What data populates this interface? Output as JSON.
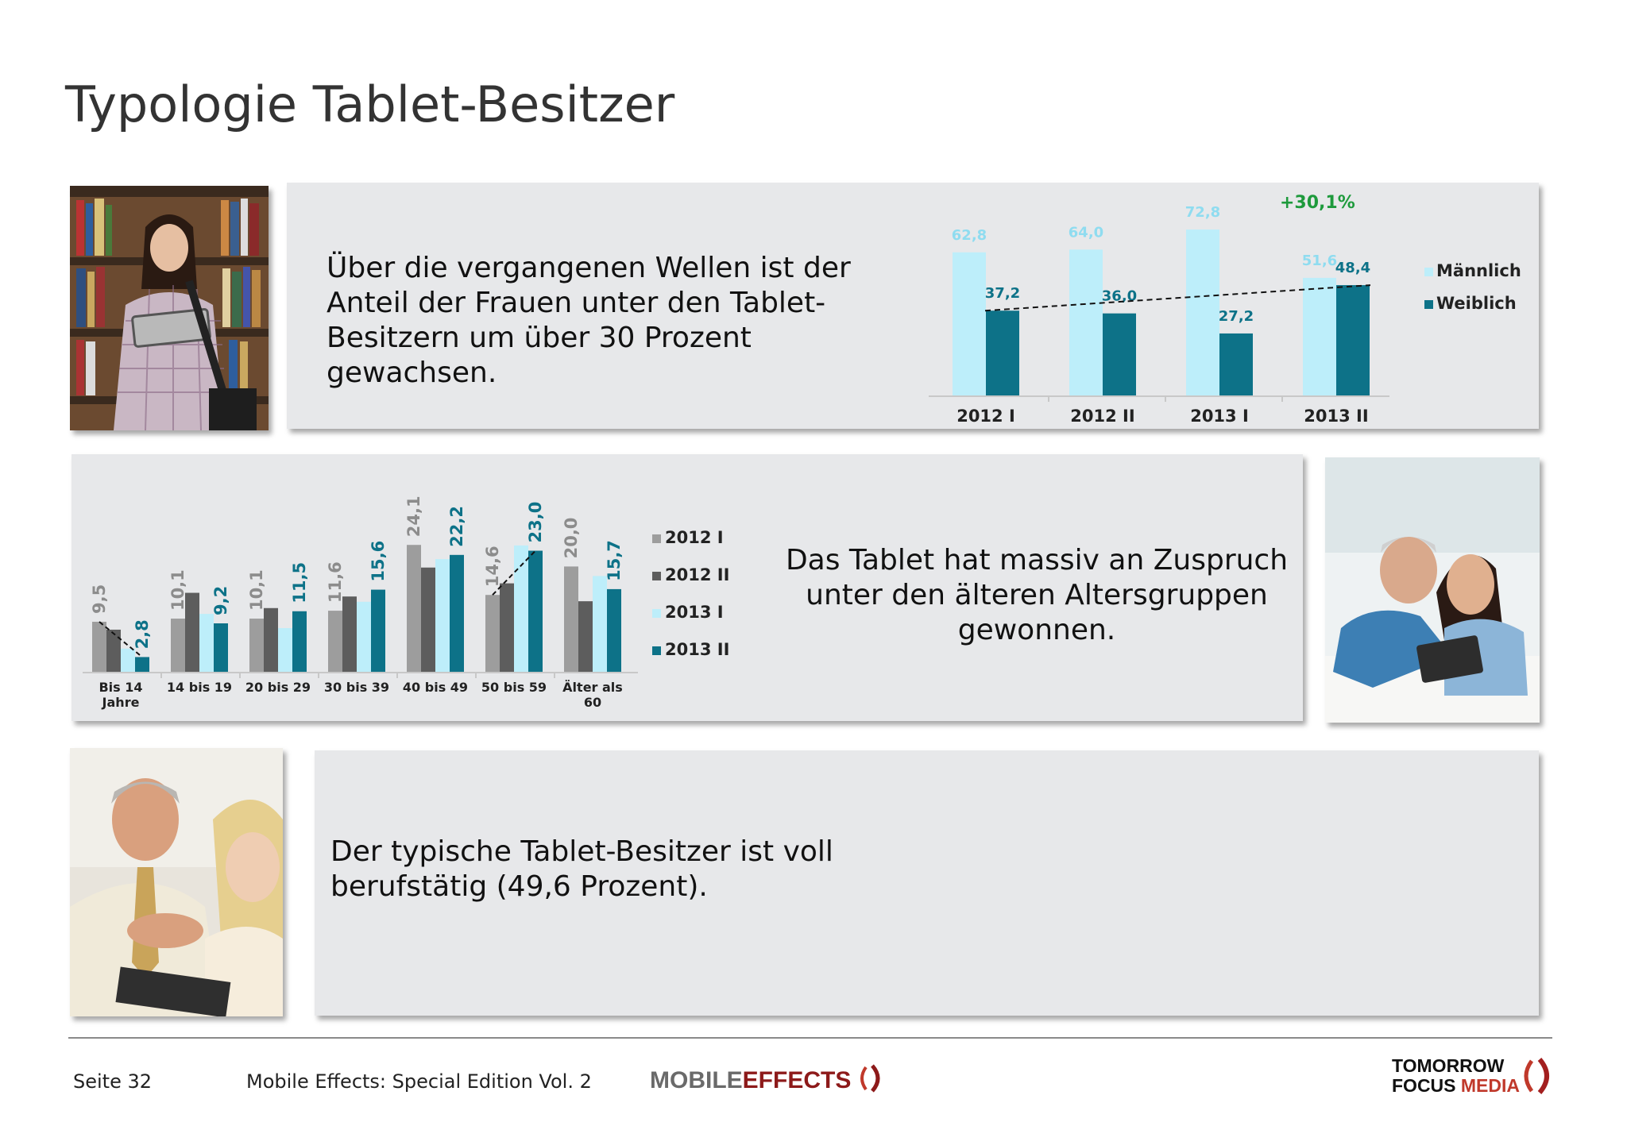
{
  "title": "Typologie Tablet-Besitzer",
  "panels": {
    "top_text": "Über die vergangenen Wellen ist der Anteil der Frauen unter den Tablet-Besitzern um über 30 Prozent gewachsen.",
    "mid_text": "Das Tablet hat massiv an Zuspruch unter den älteren Altersgruppen gewonnen.",
    "bottom_text": "Der typische Tablet-Besitzer ist voll berufstätig (49,6 Prozent)."
  },
  "colors": {
    "c2012_I": "#9d9d9d",
    "c2012_II": "#5d5d5d",
    "c2013_I": "#bdeefa",
    "c2013_II": "#0d7288",
    "growth": "#1e9a3c"
  },
  "chart_data": [
    {
      "type": "bar",
      "categories": [
        "2012 I",
        "2012 II",
        "2013 I",
        "2013 II"
      ],
      "series": [
        {
          "name": "Männlich",
          "values": [
            62.8,
            64.0,
            72.8,
            51.6
          ],
          "labels": [
            "62,8",
            "64,0",
            "72,8",
            "51,6"
          ]
        },
        {
          "name": "Weiblich",
          "values": [
            37.2,
            36.0,
            27.2,
            48.4
          ],
          "labels": [
            "37,2",
            "36,0",
            "27,2",
            "48,4"
          ]
        }
      ],
      "annotation": "+30,1%",
      "trendline": "dashed, Weiblich 2012 I to 2013 II",
      "ylim": [
        0,
        80
      ],
      "legend": "right"
    },
    {
      "type": "bar",
      "categories": [
        "Bis 14 Jahre",
        "14 bis 19",
        "20 bis 29",
        "30 bis 39",
        "40 bis 49",
        "50 bis 59",
        "Älter als 60"
      ],
      "series": [
        {
          "name": "2012 I",
          "values": [
            9.5,
            10.1,
            10.1,
            11.6,
            24.1,
            14.6,
            20.0
          ],
          "labels": [
            "9,5",
            "10,1",
            "10,1",
            "11,6",
            "24,1",
            "14,6",
            "20,0"
          ],
          "labeled": true
        },
        {
          "name": "2012 II",
          "values": [
            8.0,
            15.0,
            12.1,
            14.3,
            19.8,
            16.8,
            13.4
          ],
          "labeled": false
        },
        {
          "name": "2013 I",
          "values": [
            4.4,
            11.0,
            8.3,
            13.3,
            21.4,
            24.0,
            18.2
          ],
          "labeled": false
        },
        {
          "name": "2013 II",
          "values": [
            2.8,
            9.2,
            11.5,
            15.6,
            22.2,
            23.0,
            15.7
          ],
          "labels": [
            "2,8",
            "9,2",
            "11,5",
            "15,6",
            "22,2",
            "23,0",
            "15,7"
          ],
          "labeled": true
        }
      ],
      "trendlines": [
        "dashed, Bis 14 Jahre 2012 I to 2013 II",
        "dashed, 50 bis 59 2012 I to 2013 II"
      ],
      "ylim": [
        0,
        28
      ],
      "legend": "right"
    }
  ],
  "footer": {
    "page": "Seite 32",
    "publication": "Mobile Effects: Special Edition Vol. 2",
    "logo_mobile": "MOBILE",
    "logo_effects": "EFFECTS",
    "logo_tomorrow": "TOMORROW",
    "logo_focus": "FOCUS",
    "logo_media": "MEDIA"
  }
}
